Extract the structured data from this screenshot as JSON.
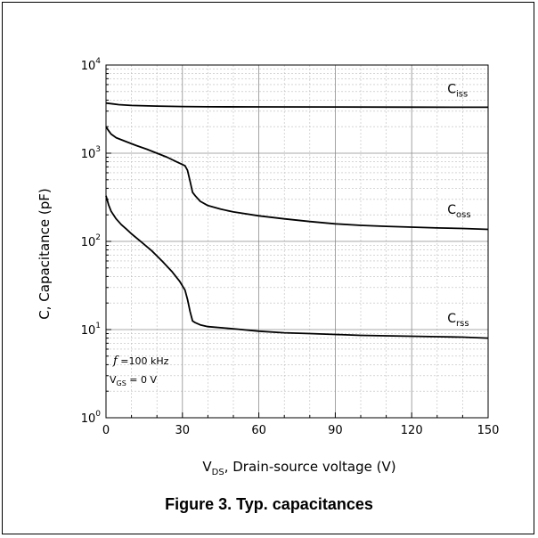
{
  "caption": "Figure 3. Typ. capacitances",
  "chart_data": {
    "type": "line",
    "x_scale": "linear",
    "y_scale": "log",
    "xlim": [
      0,
      150
    ],
    "ylim": [
      1,
      10000
    ],
    "x_ticks": [
      0,
      30,
      60,
      90,
      120,
      150
    ],
    "x_tick_labels": [
      "0",
      "30",
      "60",
      "90",
      "120",
      "150"
    ],
    "y_ticks": [
      1,
      10,
      100,
      1000,
      10000
    ],
    "y_tick_labels": [
      {
        "base": "10",
        "exp": "0"
      },
      {
        "base": "10",
        "exp": "1"
      },
      {
        "base": "10",
        "exp": "2"
      },
      {
        "base": "10",
        "exp": "3"
      },
      {
        "base": "10",
        "exp": "4"
      }
    ],
    "ylabel": "C, Capacitance (pF)",
    "xlabel": {
      "main": "V",
      "sub": "DS",
      "rest": ", Drain-source voltage (V)"
    },
    "grid": true,
    "annotation": [
      {
        "main": "f",
        "rest": " =100 kHz"
      },
      {
        "main": "V",
        "sub": "GS",
        "rest": " = 0 V"
      }
    ],
    "series": [
      {
        "name": "Ciss",
        "label": {
          "main": "C",
          "sub": "iss"
        },
        "x": [
          0,
          5,
          10,
          20,
          30,
          40,
          60,
          90,
          120,
          150
        ],
        "y": [
          3700,
          3550,
          3480,
          3420,
          3380,
          3360,
          3350,
          3340,
          3330,
          3320
        ]
      },
      {
        "name": "Coss",
        "label": {
          "main": "C",
          "sub": "oss"
        },
        "x": [
          0,
          1,
          2,
          4,
          8,
          12,
          16,
          20,
          24,
          28,
          31,
          32,
          33,
          34,
          35,
          37,
          40,
          45,
          50,
          60,
          70,
          80,
          90,
          100,
          110,
          120,
          130,
          140,
          150
        ],
        "y": [
          2000,
          1800,
          1650,
          1500,
          1350,
          1220,
          1110,
          1000,
          900,
          790,
          720,
          640,
          480,
          360,
          330,
          285,
          255,
          232,
          216,
          195,
          180,
          168,
          158,
          152,
          148,
          145,
          142,
          140,
          137
        ]
      },
      {
        "name": "Crss",
        "label": {
          "main": "C",
          "sub": "rss"
        },
        "x": [
          0,
          1,
          2,
          4,
          6,
          8,
          10,
          14,
          18,
          22,
          26,
          29,
          31,
          32,
          33,
          34,
          35,
          37,
          40,
          50,
          60,
          70,
          80,
          90,
          100,
          110,
          120,
          130,
          140,
          150
        ],
        "y": [
          330,
          260,
          220,
          180,
          155,
          138,
          122,
          98,
          78,
          60,
          45,
          35,
          28,
          22,
          16,
          12.5,
          12,
          11.3,
          10.8,
          10.2,
          9.6,
          9.2,
          9.0,
          8.8,
          8.6,
          8.5,
          8.4,
          8.3,
          8.2,
          8.0
        ]
      }
    ]
  }
}
